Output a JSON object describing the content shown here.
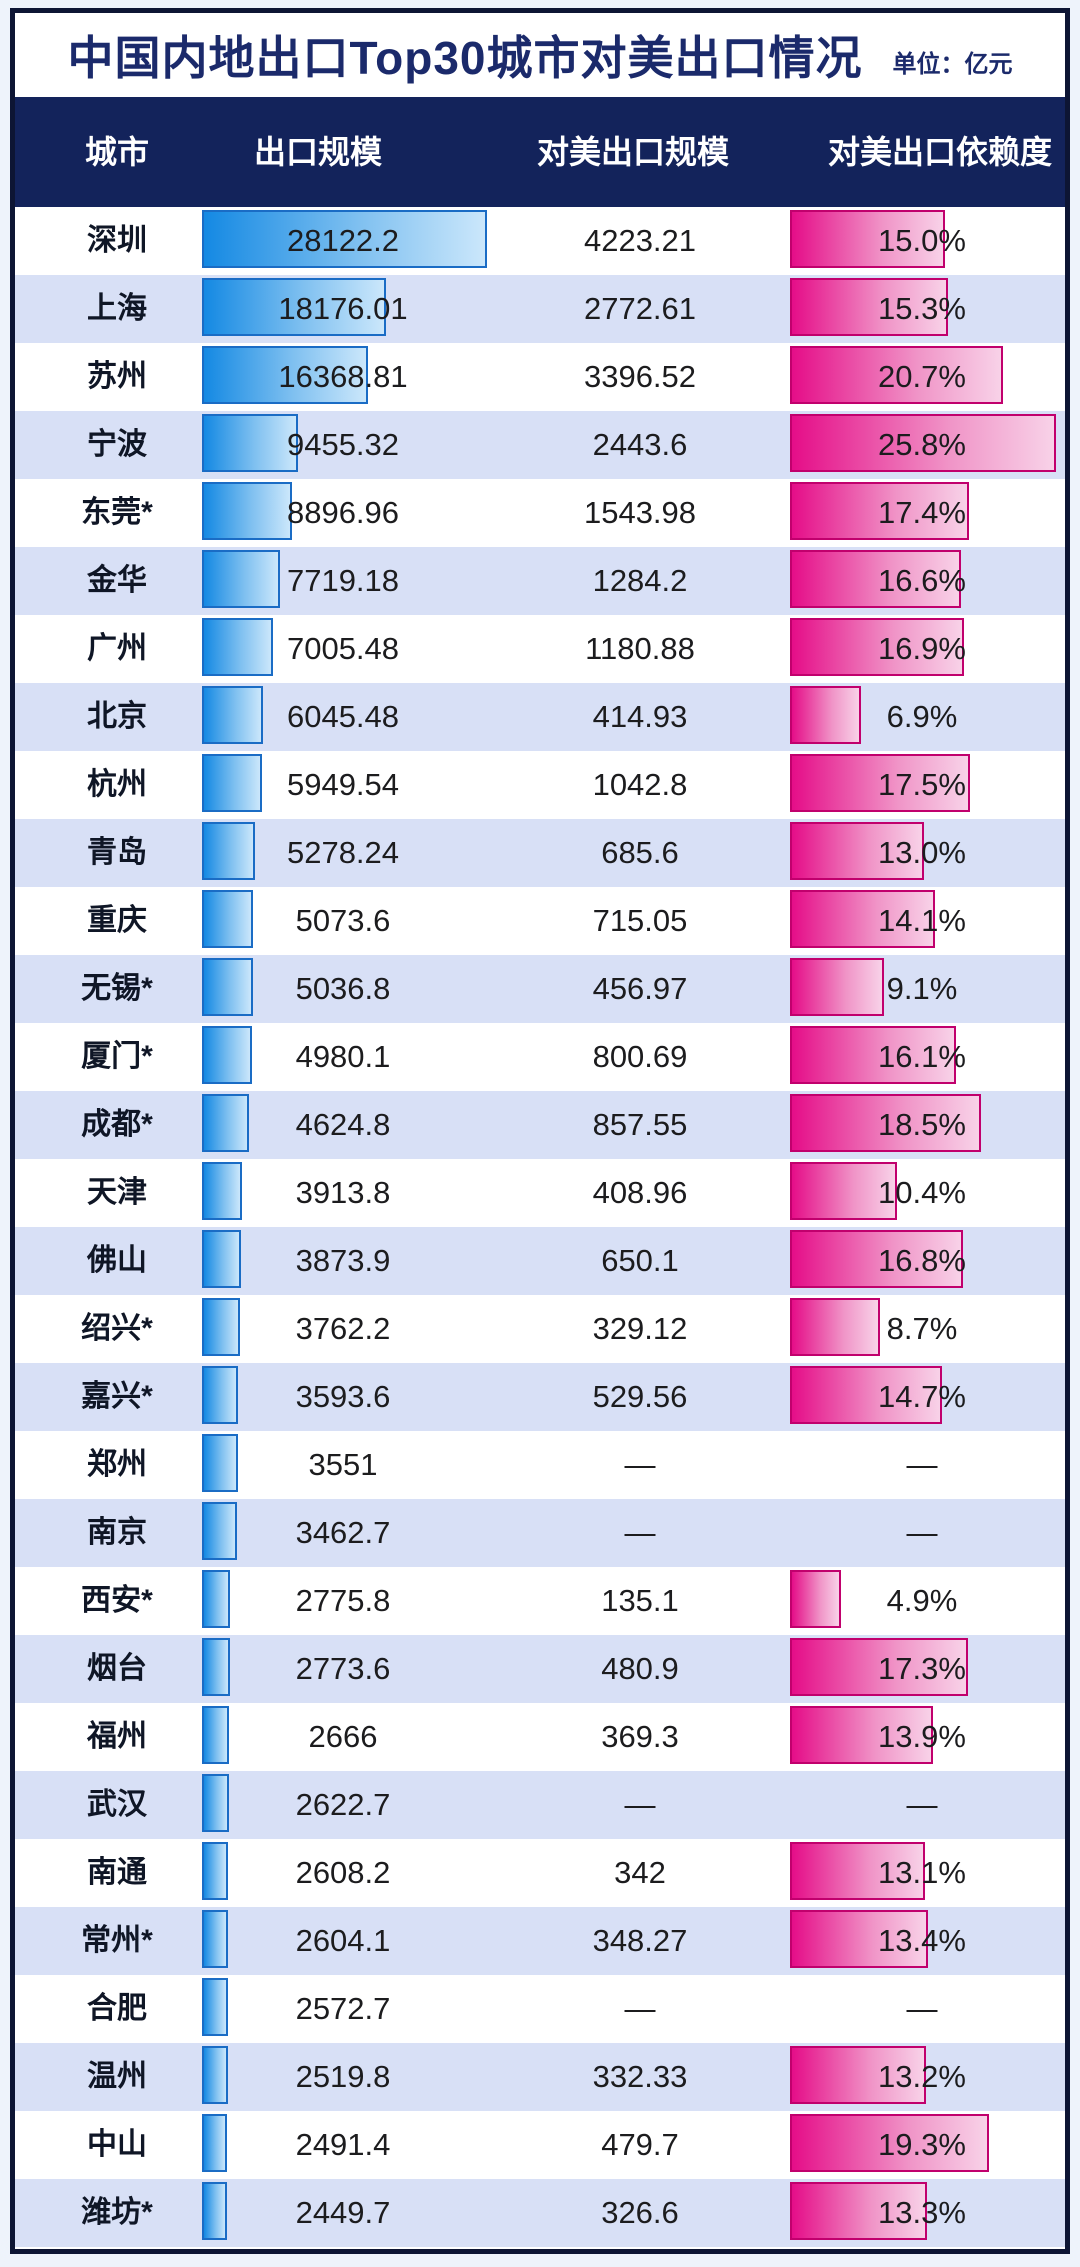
{
  "chart_data": {
    "type": "table",
    "title": "中国内地出口Top30城市对美出口情况",
    "unit_label": "单位：亿元",
    "columns": [
      "城市",
      "出口规模",
      "对美出口规模",
      "对美出口依赖度"
    ],
    "export_max": 28122.2,
    "dependency_max": 25.8,
    "missing_placeholder": "—",
    "rows": [
      {
        "city": "深圳",
        "export": "28122.2",
        "export_val": 28122.2,
        "us_export": "4223.21",
        "dependency": "15.0%",
        "dependency_val": 15.0
      },
      {
        "city": "上海",
        "export": "18176.01",
        "export_val": 18176.01,
        "us_export": "2772.61",
        "dependency": "15.3%",
        "dependency_val": 15.3
      },
      {
        "city": "苏州",
        "export": "16368.81",
        "export_val": 16368.81,
        "us_export": "3396.52",
        "dependency": "20.7%",
        "dependency_val": 20.7
      },
      {
        "city": "宁波",
        "export": "9455.32",
        "export_val": 9455.32,
        "us_export": "2443.6",
        "dependency": "25.8%",
        "dependency_val": 25.8
      },
      {
        "city": "东莞*",
        "export": "8896.96",
        "export_val": 8896.96,
        "us_export": "1543.98",
        "dependency": "17.4%",
        "dependency_val": 17.4
      },
      {
        "city": "金华",
        "export": "7719.18",
        "export_val": 7719.18,
        "us_export": "1284.2",
        "dependency": "16.6%",
        "dependency_val": 16.6
      },
      {
        "city": "广州",
        "export": "7005.48",
        "export_val": 7005.48,
        "us_export": "1180.88",
        "dependency": "16.9%",
        "dependency_val": 16.9
      },
      {
        "city": "北京",
        "export": "6045.48",
        "export_val": 6045.48,
        "us_export": "414.93",
        "dependency": "6.9%",
        "dependency_val": 6.9
      },
      {
        "city": "杭州",
        "export": "5949.54",
        "export_val": 5949.54,
        "us_export": "1042.8",
        "dependency": "17.5%",
        "dependency_val": 17.5
      },
      {
        "city": "青岛",
        "export": "5278.24",
        "export_val": 5278.24,
        "us_export": "685.6",
        "dependency": "13.0%",
        "dependency_val": 13.0
      },
      {
        "city": "重庆",
        "export": "5073.6",
        "export_val": 5073.6,
        "us_export": "715.05",
        "dependency": "14.1%",
        "dependency_val": 14.1
      },
      {
        "city": "无锡*",
        "export": "5036.8",
        "export_val": 5036.8,
        "us_export": "456.97",
        "dependency": "9.1%",
        "dependency_val": 9.1
      },
      {
        "city": "厦门*",
        "export": "4980.1",
        "export_val": 4980.1,
        "us_export": "800.69",
        "dependency": "16.1%",
        "dependency_val": 16.1
      },
      {
        "city": "成都*",
        "export": "4624.8",
        "export_val": 4624.8,
        "us_export": "857.55",
        "dependency": "18.5%",
        "dependency_val": 18.5
      },
      {
        "city": "天津",
        "export": "3913.8",
        "export_val": 3913.8,
        "us_export": "408.96",
        "dependency": "10.4%",
        "dependency_val": 10.4
      },
      {
        "city": "佛山",
        "export": "3873.9",
        "export_val": 3873.9,
        "us_export": "650.1",
        "dependency": "16.8%",
        "dependency_val": 16.8
      },
      {
        "city": "绍兴*",
        "export": "3762.2",
        "export_val": 3762.2,
        "us_export": "329.12",
        "dependency": "8.7%",
        "dependency_val": 8.7
      },
      {
        "city": "嘉兴*",
        "export": "3593.6",
        "export_val": 3593.6,
        "us_export": "529.56",
        "dependency": "14.7%",
        "dependency_val": 14.7
      },
      {
        "city": "郑州",
        "export": "3551",
        "export_val": 3551,
        "us_export": "—",
        "dependency": "—",
        "dependency_val": null
      },
      {
        "city": "南京",
        "export": "3462.7",
        "export_val": 3462.7,
        "us_export": "—",
        "dependency": "—",
        "dependency_val": null
      },
      {
        "city": "西安*",
        "export": "2775.8",
        "export_val": 2775.8,
        "us_export": "135.1",
        "dependency": "4.9%",
        "dependency_val": 4.9
      },
      {
        "city": "烟台",
        "export": "2773.6",
        "export_val": 2773.6,
        "us_export": "480.9",
        "dependency": "17.3%",
        "dependency_val": 17.3
      },
      {
        "city": "福州",
        "export": "2666",
        "export_val": 2666,
        "us_export": "369.3",
        "dependency": "13.9%",
        "dependency_val": 13.9
      },
      {
        "city": "武汉",
        "export": "2622.7",
        "export_val": 2622.7,
        "us_export": "—",
        "dependency": "—",
        "dependency_val": null
      },
      {
        "city": "南通",
        "export": "2608.2",
        "export_val": 2608.2,
        "us_export": "342",
        "dependency": "13.1%",
        "dependency_val": 13.1
      },
      {
        "city": "常州*",
        "export": "2604.1",
        "export_val": 2604.1,
        "us_export": "348.27",
        "dependency": "13.4%",
        "dependency_val": 13.4
      },
      {
        "city": "合肥",
        "export": "2572.7",
        "export_val": 2572.7,
        "us_export": "—",
        "dependency": "—",
        "dependency_val": null
      },
      {
        "city": "温州",
        "export": "2519.8",
        "export_val": 2519.8,
        "us_export": "332.33",
        "dependency": "13.2%",
        "dependency_val": 13.2
      },
      {
        "city": "中山",
        "export": "2491.4",
        "export_val": 2491.4,
        "us_export": "479.7",
        "dependency": "19.3%",
        "dependency_val": 19.3
      },
      {
        "city": "潍坊*",
        "export": "2449.7",
        "export_val": 2449.7,
        "us_export": "326.6",
        "dependency": "13.3%",
        "dependency_val": 13.3
      }
    ]
  },
  "colors": {
    "header_bg": "#13235b",
    "card_border": "#0d1534",
    "title_text": "#1b2a6b",
    "row_striping": [
      "#ffffff",
      "#d8e0f6"
    ],
    "export_bar_start": "#1489e3",
    "export_bar_end": "#cbe7fb",
    "export_bar_border": "#1a6cc5",
    "dependency_bar_start": "#e50d88",
    "dependency_bar_end": "#f8d2e8",
    "dependency_bar_border": "#c1006d",
    "value_text": "#1c1c1e"
  }
}
